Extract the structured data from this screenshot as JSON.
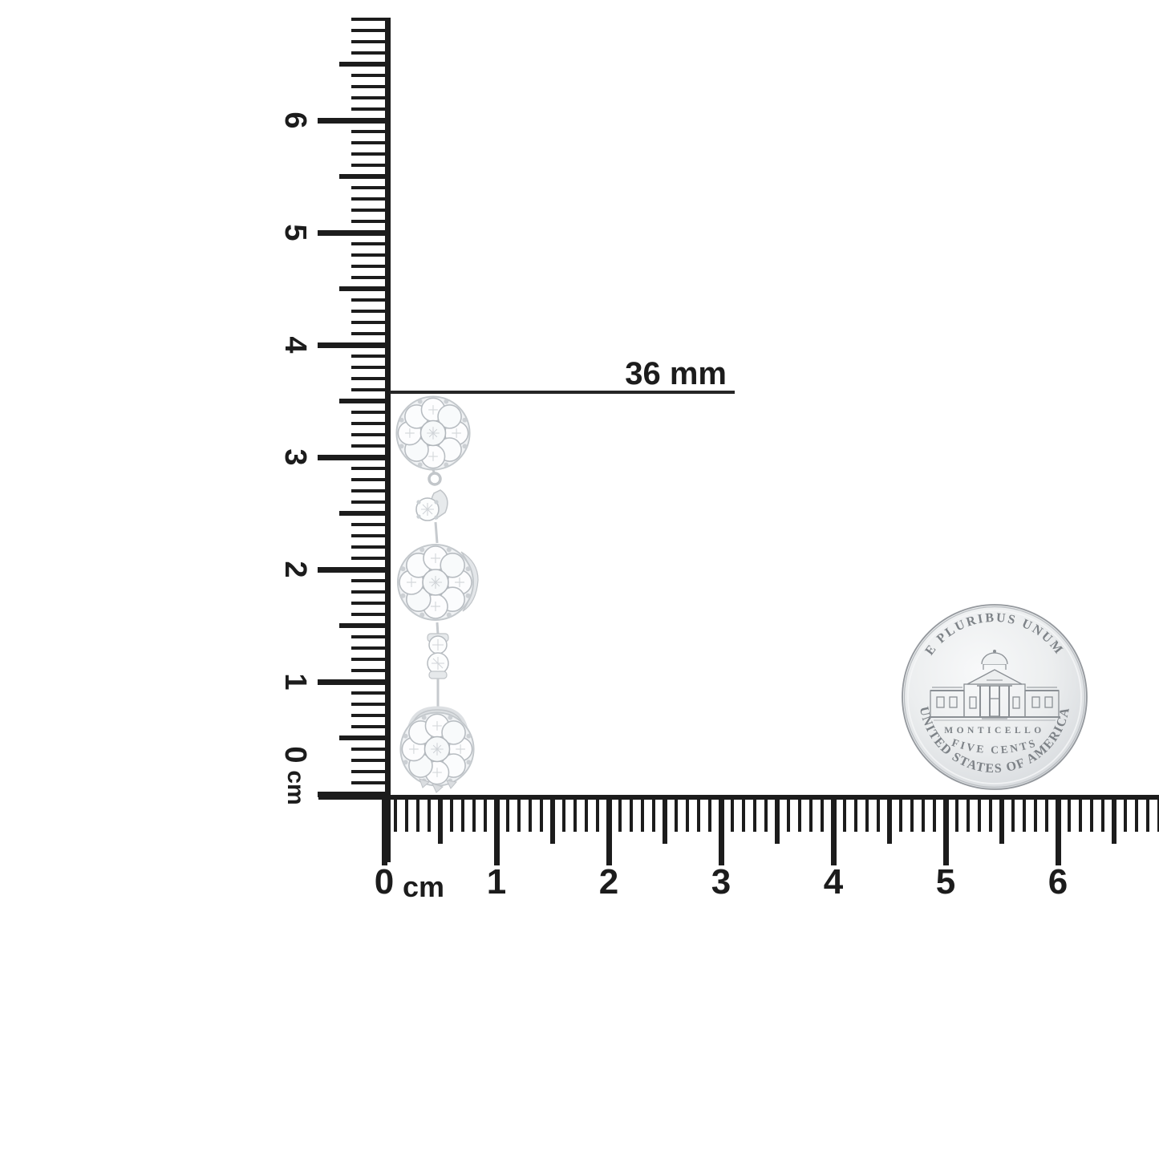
{
  "page": {
    "background": "#ffffff"
  },
  "measurement": {
    "label": "36 mm"
  },
  "rulers": {
    "ink_color": "#1c1c1c",
    "vertical": {
      "labels": [
        "0",
        "1",
        "2",
        "3",
        "4",
        "5",
        "6"
      ],
      "unit_label": "cm"
    },
    "horizontal": {
      "labels": [
        "0",
        "1",
        "2",
        "3",
        "4",
        "5",
        "6"
      ],
      "unit_label": "cm"
    }
  },
  "earring": {
    "metal_color": "#e3e6e9",
    "stone_outline_color": "#b6bbc0"
  },
  "coin": {
    "face_color": "#e9ebed",
    "engraving_color": "#7d8287",
    "inscriptions": {
      "top": "E PLURIBUS UNUM",
      "building": "MONTICELLO",
      "denomination": "FIVE CENTS",
      "bottom": "UNITED STATES OF AMERICA"
    }
  }
}
